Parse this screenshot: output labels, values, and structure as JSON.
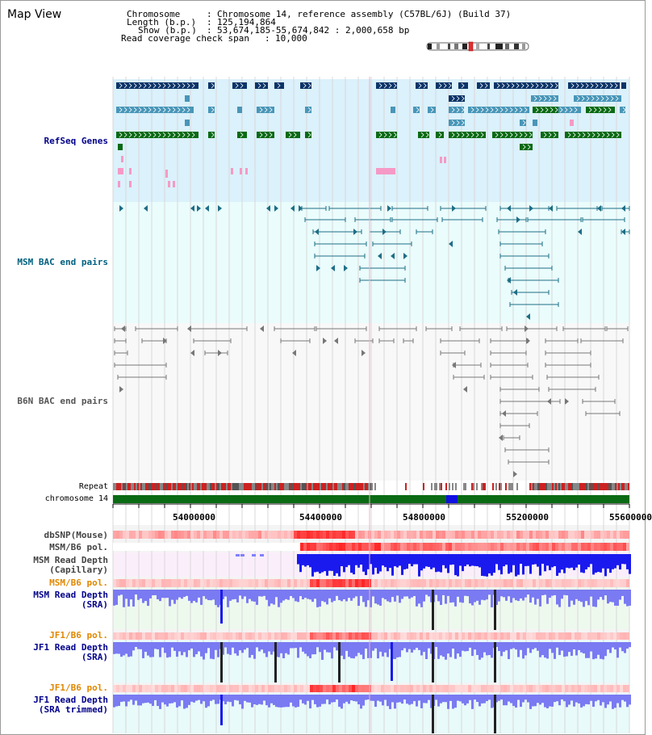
{
  "header": {
    "title": "Map View",
    "chromosome_label": "Chromosome",
    "chromosome_value": "Chromosome 14, reference assembly (C57BL/6J) (Build 37)",
    "length_label": "Length (b.p.)",
    "length_value": "125,194,864",
    "show_label": "Show (b.p.)",
    "show_value": "53,674,185-55,674,842 : 2,000,658 bp",
    "span_label": "Read coverage check span",
    "span_value": "10,000"
  },
  "tracks": {
    "refseq": "RefSeq Genes",
    "msm_bac": "MSM BAC end pairs",
    "b6n_bac": "B6N BAC end pairs",
    "repeat": "Repeat",
    "chromosome": "chromosome 14",
    "dbsnp": "dbSNP(Mouse)",
    "msm_b6_pol_1": "MSM/B6 pol.",
    "msm_read_depth_cap": "MSM Read Depth\n(Capillary)",
    "msm_b6_pol_2": "MSM/B6 pol.",
    "msm_read_depth_sra": "MSM Read Depth\n(SRA)",
    "jf1_b6_pol_1": "JF1/B6 pol.",
    "jf1_read_depth_sra": "JF1 Read Depth\n(SRA)",
    "jf1_b6_pol_2": "JF1/B6 pol.",
    "jf1_read_depth_trim": "JF1 Read Depth\n(SRA trimmed)"
  },
  "axis": {
    "ticks": [
      "54000000",
      "54400000",
      "54800000",
      "55200000",
      "55600000"
    ]
  },
  "colors": {
    "refseq_bg": "#dbf1fb",
    "msm_bac_bg": "#eafcfc",
    "b6n_bg": "#f8f8f8",
    "gene_navy": "#0b3468",
    "gene_teal": "#4896b8",
    "gene_green": "#0a6a14",
    "gene_pink": "#f59ac6",
    "bac_teal": "#1d6e86",
    "bac_gray": "#777777",
    "chrom_green": "#0b6b14",
    "depth_blue": "#7070f0",
    "label_navy": "#00008b",
    "label_teal": "#006080",
    "label_orange": "#e08800"
  }
}
